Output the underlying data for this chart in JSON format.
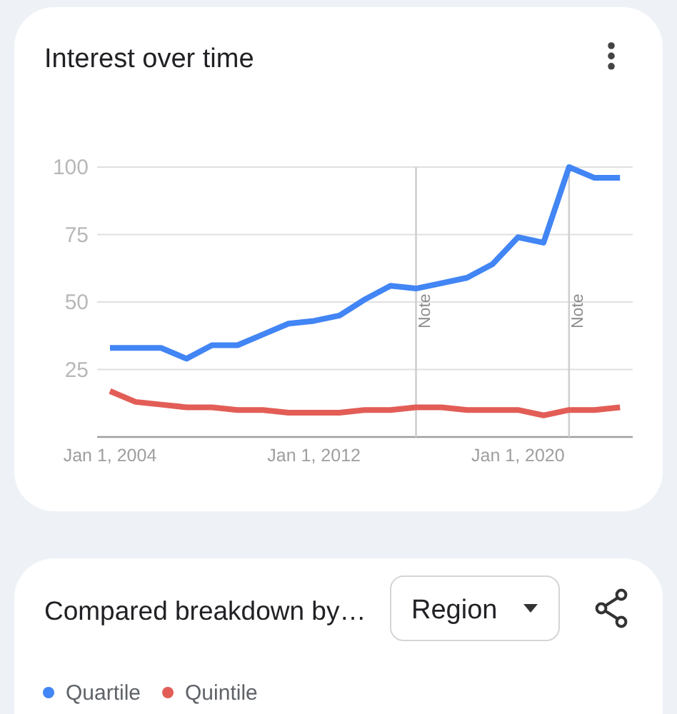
{
  "chart_data": {
    "type": "line",
    "title": "Interest over time",
    "x": [
      "2004",
      "2005",
      "2006",
      "2007",
      "2008",
      "2009",
      "2010",
      "2011",
      "2012",
      "2013",
      "2014",
      "2015",
      "2016",
      "2017",
      "2018",
      "2019",
      "2020",
      "2021",
      "2022",
      "2023",
      "2024"
    ],
    "series": [
      {
        "name": "Quartile",
        "color": "#4285f4",
        "values": [
          33,
          33,
          33,
          29,
          34,
          34,
          38,
          42,
          43,
          45,
          51,
          56,
          55,
          57,
          59,
          64,
          74,
          72,
          100,
          96,
          96
        ]
      },
      {
        "name": "Quintile",
        "color": "#e35d57",
        "values": [
          17,
          13,
          12,
          11,
          11,
          10,
          10,
          9,
          9,
          9,
          10,
          10,
          11,
          11,
          10,
          10,
          10,
          8,
          10,
          10,
          11
        ]
      }
    ],
    "xlim": [
      "2003-07",
      "2024-07"
    ],
    "xticks": [
      {
        "value": "2004",
        "label": "Jan 1, 2004"
      },
      {
        "value": "2012",
        "label": "Jan 1, 2012"
      },
      {
        "value": "2020",
        "label": "Jan 1, 2020"
      }
    ],
    "ylim": [
      0,
      100
    ],
    "yticks": [
      {
        "value": 0,
        "label": null
      },
      25,
      50,
      75,
      100
    ],
    "grid": "y",
    "legend": "bottom",
    "ref_lines": [
      {
        "axis": "x",
        "value": "2016",
        "label": "Note"
      },
      {
        "axis": "x",
        "value": "2022",
        "label": "Note"
      }
    ],
    "annotations": [
      "Compared breakdown by…",
      "Region"
    ]
  }
}
